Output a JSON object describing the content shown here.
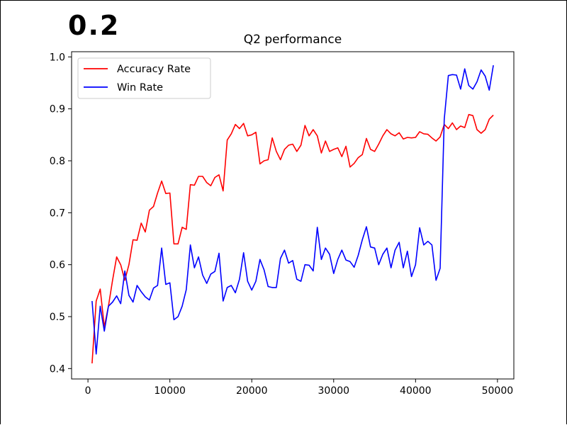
{
  "annotation": "0.2",
  "chart_data": {
    "type": "line",
    "title": "Q2 performance",
    "xlabel": "",
    "ylabel": "",
    "xlim": [
      -2000,
      52000
    ],
    "ylim": [
      0.38,
      1.01
    ],
    "xticks": [
      0,
      10000,
      20000,
      30000,
      40000,
      50000
    ],
    "yticks": [
      0.4,
      0.5,
      0.6,
      0.7,
      0.8,
      0.9,
      1.0
    ],
    "ytick_labels": [
      "0.4",
      "0.5",
      "0.6",
      "0.7",
      "0.8",
      "0.9",
      "1.0"
    ],
    "legend": "top-left",
    "grid": false,
    "x": [
      500,
      1000,
      1500,
      2000,
      2500,
      3000,
      3500,
      4000,
      4500,
      5000,
      5500,
      6000,
      6500,
      7000,
      7500,
      8000,
      8500,
      9000,
      9500,
      10000,
      10500,
      11000,
      11500,
      12000,
      12500,
      13000,
      13500,
      14000,
      14500,
      15000,
      15500,
      16000,
      16500,
      17000,
      17500,
      18000,
      18500,
      19000,
      19500,
      20000,
      20500,
      21000,
      21500,
      22000,
      22500,
      23000,
      23500,
      24000,
      24500,
      25000,
      25500,
      26000,
      26500,
      27000,
      27500,
      28000,
      28500,
      29000,
      29500,
      30000,
      30500,
      31000,
      31500,
      32000,
      32500,
      33000,
      33500,
      34000,
      34500,
      35000,
      35500,
      36000,
      36500,
      37000,
      37500,
      38000,
      38500,
      39000,
      39500,
      40000,
      40500,
      41000,
      41500,
      42000,
      42500,
      43000,
      43500,
      44000,
      44500,
      45000,
      45500,
      46000,
      46500,
      47000,
      47500,
      48000,
      48500,
      49000,
      49500
    ],
    "series": [
      {
        "name": "Accuracy Rate",
        "color": "#ff0000",
        "values": [
          0.41,
          0.53,
          0.553,
          0.48,
          0.52,
          0.57,
          0.615,
          0.6,
          0.57,
          0.6,
          0.648,
          0.647,
          0.68,
          0.663,
          0.705,
          0.712,
          0.738,
          0.761,
          0.737,
          0.738,
          0.64,
          0.64,
          0.672,
          0.668,
          0.754,
          0.753,
          0.77,
          0.77,
          0.758,
          0.752,
          0.768,
          0.773,
          0.742,
          0.84,
          0.852,
          0.87,
          0.862,
          0.872,
          0.848,
          0.85,
          0.855,
          0.794,
          0.8,
          0.802,
          0.844,
          0.818,
          0.802,
          0.822,
          0.83,
          0.832,
          0.818,
          0.83,
          0.868,
          0.848,
          0.86,
          0.848,
          0.815,
          0.838,
          0.818,
          0.822,
          0.825,
          0.808,
          0.828,
          0.788,
          0.795,
          0.806,
          0.812,
          0.843,
          0.822,
          0.818,
          0.832,
          0.848,
          0.86,
          0.852,
          0.848,
          0.854,
          0.842,
          0.845,
          0.844,
          0.845,
          0.856,
          0.852,
          0.851,
          0.844,
          0.838,
          0.846,
          0.87,
          0.862,
          0.873,
          0.86,
          0.867,
          0.864,
          0.889,
          0.887,
          0.86,
          0.853,
          0.86,
          0.88,
          0.888
        ]
      },
      {
        "name": "Win Rate",
        "color": "#0000ff",
        "values": [
          0.53,
          0.428,
          0.52,
          0.472,
          0.52,
          0.528,
          0.54,
          0.525,
          0.588,
          0.541,
          0.528,
          0.56,
          0.548,
          0.538,
          0.532,
          0.555,
          0.56,
          0.632,
          0.562,
          0.565,
          0.494,
          0.5,
          0.52,
          0.552,
          0.638,
          0.594,
          0.615,
          0.58,
          0.564,
          0.582,
          0.587,
          0.622,
          0.53,
          0.556,
          0.56,
          0.546,
          0.572,
          0.623,
          0.568,
          0.551,
          0.568,
          0.61,
          0.59,
          0.558,
          0.556,
          0.556,
          0.612,
          0.628,
          0.603,
          0.608,
          0.572,
          0.568,
          0.6,
          0.599,
          0.588,
          0.672,
          0.61,
          0.632,
          0.62,
          0.583,
          0.61,
          0.628,
          0.609,
          0.606,
          0.595,
          0.618,
          0.648,
          0.673,
          0.634,
          0.632,
          0.6,
          0.62,
          0.632,
          0.594,
          0.628,
          0.643,
          0.594,
          0.626,
          0.577,
          0.6,
          0.671,
          0.638,
          0.645,
          0.638,
          0.57,
          0.593,
          0.88,
          0.964,
          0.966,
          0.965,
          0.938,
          0.977,
          0.945,
          0.938,
          0.952,
          0.975,
          0.963,
          0.936,
          0.984
        ]
      }
    ]
  }
}
